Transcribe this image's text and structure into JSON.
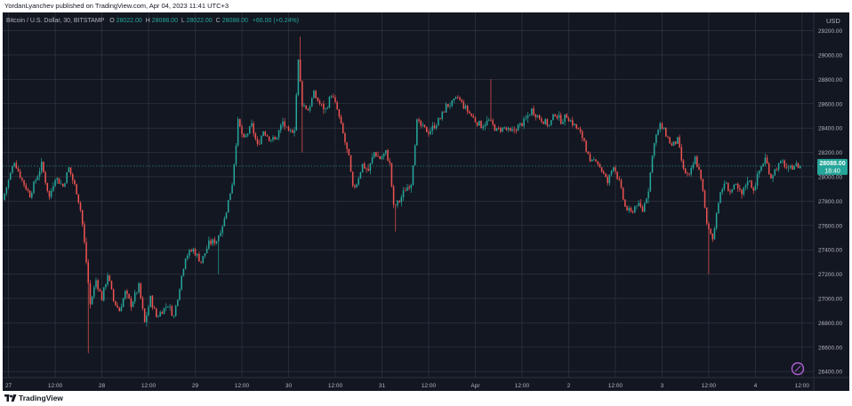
{
  "header": {
    "publisher_text": "YordanLyanchev published on TradingView.com, Apr 04, 2023 11:41 UTC+3"
  },
  "legend": {
    "symbol": "Bitcoin / U.S. Dollar, 30, BITSTAMP",
    "open_label": "O",
    "open": "28022.00",
    "high_label": "H",
    "high": "28088.00",
    "low_label": "L",
    "low": "28022.00",
    "close_label": "C",
    "close": "28088.00",
    "change": "+66.00 (+0.24%)"
  },
  "price_label": {
    "price": "28088.00",
    "countdown": "18:40"
  },
  "footer": {
    "brand": "TradingView"
  },
  "colors": {
    "background": "#131722",
    "grid": "#363a45",
    "up": "#26a69a",
    "down": "#ef5350",
    "axis_text": "#b2b5be",
    "price_badge": "#26a69a"
  },
  "icons": {
    "logo": "tradingview-logo-icon",
    "compass": "compass-icon"
  },
  "chart_data": {
    "type": "candlestick",
    "symbol": "Bitcoin / U.S. Dollar, 30, BITSTAMP",
    "currency": "USD",
    "interval_minutes": 30,
    "ylim": [
      26350,
      29350
    ],
    "y_ticks": [
      "26400.00",
      "26600.00",
      "26800.00",
      "27000.00",
      "27200.00",
      "27400.00",
      "27600.00",
      "27800.00",
      "28000.00",
      "28200.00",
      "28400.00",
      "28600.00",
      "28800.00",
      "29000.00",
      "29200.00"
    ],
    "x_ticks": [
      "27",
      "12:00",
      "28",
      "12:00",
      "29",
      "12:00",
      "30",
      "12:00",
      "31",
      "12:00",
      "Apr",
      "12:00",
      "2",
      "12:00",
      "3",
      "12:00",
      "4",
      "12:00"
    ],
    "x_tick_hours": [
      0,
      12,
      24,
      36,
      48,
      60,
      72,
      84,
      96,
      108,
      120,
      132,
      144,
      156,
      168,
      180,
      192,
      204
    ],
    "x_start_hour": -1.5,
    "x_end_hour": 207,
    "last_hour": 203.5,
    "last_price": 28088,
    "grid": true,
    "anchors": [
      [
        -1.0,
        27810
      ],
      [
        2.0,
        28130
      ],
      [
        4.0,
        27970
      ],
      [
        6.0,
        27850
      ],
      [
        9.0,
        28100
      ],
      [
        11.0,
        27830
      ],
      [
        12.5,
        28000
      ],
      [
        14.5,
        27920
      ],
      [
        16.0,
        28070
      ],
      [
        18.0,
        27880
      ],
      [
        19.2,
        27700
      ],
      [
        20.5,
        27300
      ],
      [
        21.5,
        26950
      ],
      [
        23.0,
        27150
      ],
      [
        24.5,
        27000
      ],
      [
        26.0,
        27200
      ],
      [
        27.5,
        26980
      ],
      [
        29.0,
        26900
      ],
      [
        30.5,
        27050
      ],
      [
        32.0,
        26950
      ],
      [
        34.0,
        27100
      ],
      [
        35.5,
        26800
      ],
      [
        37.0,
        27000
      ],
      [
        38.5,
        26850
      ],
      [
        40.0,
        26900
      ],
      [
        41.5,
        26950
      ],
      [
        43.0,
        26850
      ],
      [
        44.5,
        27100
      ],
      [
        46.0,
        27350
      ],
      [
        48.0,
        27400
      ],
      [
        50.0,
        27300
      ],
      [
        52.0,
        27450
      ],
      [
        54.0,
        27480
      ],
      [
        56.0,
        27650
      ],
      [
        58.0,
        27950
      ],
      [
        59.5,
        28450
      ],
      [
        61.0,
        28300
      ],
      [
        63.0,
        28420
      ],
      [
        64.5,
        28250
      ],
      [
        66.0,
        28380
      ],
      [
        67.5,
        28320
      ],
      [
        69.0,
        28300
      ],
      [
        71.0,
        28450
      ],
      [
        72.5,
        28350
      ],
      [
        74.0,
        28400
      ],
      [
        75.0,
        28950
      ],
      [
        76.0,
        28600
      ],
      [
        77.5,
        28550
      ],
      [
        79.0,
        28680
      ],
      [
        80.5,
        28600
      ],
      [
        82.0,
        28550
      ],
      [
        83.5,
        28680
      ],
      [
        85.0,
        28550
      ],
      [
        86.5,
        28350
      ],
      [
        88.0,
        28150
      ],
      [
        89.0,
        27900
      ],
      [
        90.0,
        27950
      ],
      [
        91.5,
        28100
      ],
      [
        93.0,
        28050
      ],
      [
        94.5,
        28200
      ],
      [
        96.0,
        28150
      ],
      [
        97.5,
        28200
      ],
      [
        98.5,
        28100
      ],
      [
        99.5,
        27750
      ],
      [
        101.0,
        27800
      ],
      [
        102.5,
        27900
      ],
      [
        104.0,
        27950
      ],
      [
        105.5,
        28450
      ],
      [
        107.0,
        28400
      ],
      [
        108.5,
        28370
      ],
      [
        110.0,
        28420
      ],
      [
        111.5,
        28480
      ],
      [
        113.0,
        28580
      ],
      [
        114.5,
        28600
      ],
      [
        116.0,
        28650
      ],
      [
        117.5,
        28580
      ],
      [
        119.0,
        28520
      ],
      [
        120.5,
        28460
      ],
      [
        122.0,
        28420
      ],
      [
        124.0,
        28460
      ],
      [
        126.0,
        28380
      ],
      [
        128.0,
        28400
      ],
      [
        129.5,
        28360
      ],
      [
        131.0,
        28400
      ],
      [
        133.0,
        28450
      ],
      [
        135.0,
        28550
      ],
      [
        136.5,
        28500
      ],
      [
        138.0,
        28460
      ],
      [
        139.5,
        28420
      ],
      [
        141.0,
        28520
      ],
      [
        142.5,
        28460
      ],
      [
        144.0,
        28500
      ],
      [
        145.5,
        28440
      ],
      [
        147.0,
        28380
      ],
      [
        148.5,
        28300
      ],
      [
        150.0,
        28100
      ],
      [
        151.5,
        28150
      ],
      [
        153.0,
        28050
      ],
      [
        154.5,
        27950
      ],
      [
        156.0,
        28100
      ],
      [
        157.5,
        27950
      ],
      [
        159.0,
        27750
      ],
      [
        160.5,
        27700
      ],
      [
        162.0,
        27780
      ],
      [
        163.5,
        27720
      ],
      [
        165.0,
        27900
      ],
      [
        166.5,
        28300
      ],
      [
        168.0,
        28420
      ],
      [
        169.5,
        28350
      ],
      [
        171.0,
        28250
      ],
      [
        172.5,
        28300
      ],
      [
        174.0,
        28050
      ],
      [
        175.5,
        28000
      ],
      [
        177.0,
        28150
      ],
      [
        178.5,
        28000
      ],
      [
        180.0,
        27600
      ],
      [
        181.5,
        27500
      ],
      [
        183.0,
        27800
      ],
      [
        184.5,
        27950
      ],
      [
        186.0,
        27880
      ],
      [
        187.5,
        27920
      ],
      [
        189.0,
        27850
      ],
      [
        190.5,
        27980
      ],
      [
        192.0,
        27900
      ],
      [
        193.5,
        28050
      ],
      [
        195.0,
        28150
      ],
      [
        196.5,
        28000
      ],
      [
        198.0,
        28080
      ],
      [
        199.5,
        28120
      ],
      [
        201.0,
        28050
      ],
      [
        202.5,
        28100
      ],
      [
        203.5,
        28088
      ]
    ]
  }
}
